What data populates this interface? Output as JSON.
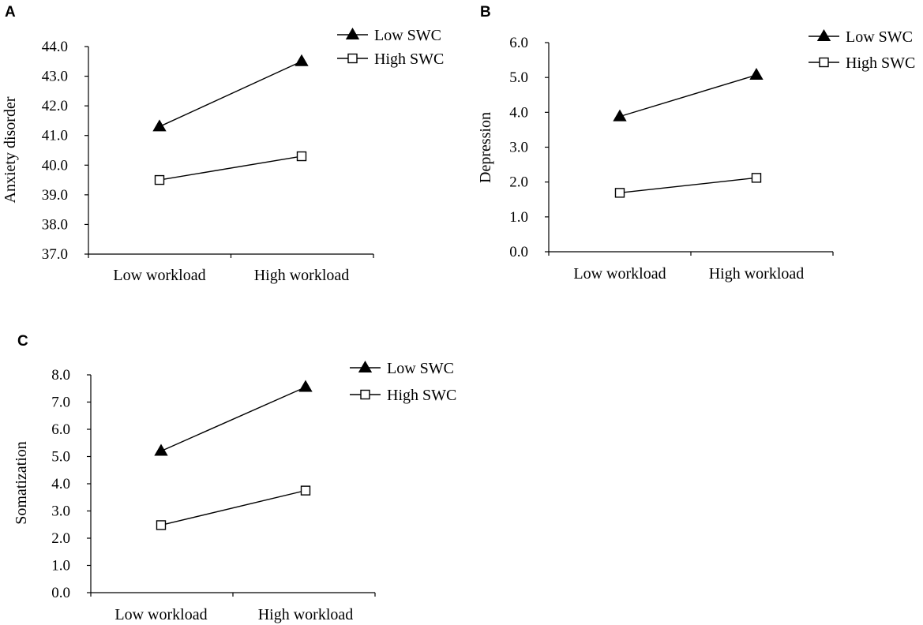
{
  "chart_data": [
    {
      "panel": "A",
      "type": "line",
      "categories": [
        "Low workload",
        "High workload"
      ],
      "series": [
        {
          "name": "Low SWC",
          "marker": "filled-triangle",
          "values": [
            41.3,
            43.5
          ]
        },
        {
          "name": "High SWC",
          "marker": "open-square",
          "values": [
            39.5,
            40.3
          ]
        }
      ],
      "ylabel": "Anxiety disorder",
      "xlabel": "",
      "ylim": [
        37.0,
        44.0
      ],
      "yticks": [
        "37.0",
        "38.0",
        "39.0",
        "40.0",
        "41.0",
        "42.0",
        "43.0",
        "44.0"
      ],
      "legend": "top-right"
    },
    {
      "panel": "B",
      "type": "line",
      "categories": [
        "Low workload",
        "High workload"
      ],
      "series": [
        {
          "name": "Low SWC",
          "marker": "filled-triangle",
          "values": [
            3.88,
            5.07
          ]
        },
        {
          "name": "High SWC",
          "marker": "open-square",
          "values": [
            1.69,
            2.12
          ]
        }
      ],
      "ylabel": "Depression",
      "xlabel": "",
      "ylim": [
        0.0,
        6.0
      ],
      "yticks": [
        "0.0",
        "1.0",
        "2.0",
        "3.0",
        "4.0",
        "5.0",
        "6.0"
      ],
      "legend": "top-right"
    },
    {
      "panel": "C",
      "type": "line",
      "categories": [
        "Low workload",
        "High workload"
      ],
      "series": [
        {
          "name": "Low SWC",
          "marker": "filled-triangle",
          "values": [
            5.2,
            7.55
          ]
        },
        {
          "name": "High SWC",
          "marker": "open-square",
          "values": [
            2.48,
            3.75
          ]
        }
      ],
      "ylabel": "Somatization",
      "xlabel": "",
      "ylim": [
        0.0,
        8.0
      ],
      "yticks": [
        "0.0",
        "1.0",
        "2.0",
        "3.0",
        "4.0",
        "5.0",
        "6.0",
        "7.0",
        "8.0"
      ],
      "legend": "top-right"
    }
  ]
}
